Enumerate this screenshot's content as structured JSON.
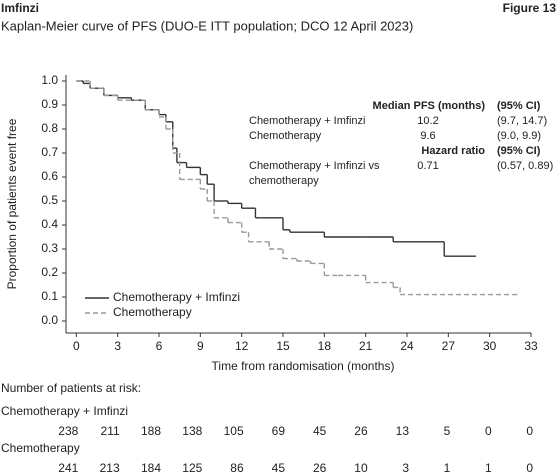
{
  "chart_data": {
    "type": "km",
    "header": "Imfinzi",
    "figure_label": "Figure 13",
    "title": "Kaplan-Meier curve of PFS (DUO-E ITT population; DCO 12 April 2023)",
    "x_label": "Time from randomisation (months)",
    "y_label": "Proportion of patients event free",
    "xlim": [
      -0.75,
      33
    ],
    "ylim": [
      -0.05,
      1.025
    ],
    "xticks": [
      0,
      3,
      6,
      9,
      12,
      15,
      18,
      21,
      24,
      27,
      30,
      33
    ],
    "yticks": [
      {
        "value": 0,
        "label": "0.0"
      },
      0.1,
      0.2,
      0.3,
      0.4,
      0.5,
      0.6,
      0.7,
      0.8,
      0.9,
      {
        "value": 1,
        "label": "1.0"
      }
    ],
    "legend": "lower left",
    "series": [
      {
        "name": "Chemotherapy + Imfinzi",
        "color": "#333333",
        "line_style": "solid",
        "x": [
          0,
          0.5,
          1,
          2,
          3,
          4,
          5,
          6,
          6.5,
          7,
          7.3,
          8,
          9,
          9.5,
          10,
          11,
          12,
          13,
          15,
          15.5,
          17,
          18,
          21,
          23,
          26,
          26.7,
          29
        ],
        "values": [
          1.0,
          0.99,
          0.97,
          0.94,
          0.93,
          0.92,
          0.88,
          0.86,
          0.83,
          0.72,
          0.66,
          0.64,
          0.61,
          0.57,
          0.5,
          0.49,
          0.47,
          0.43,
          0.38,
          0.37,
          0.37,
          0.35,
          0.35,
          0.33,
          0.33,
          0.27,
          0.27
        ]
      },
      {
        "name": "Chemotherapy",
        "color": "#999999",
        "line_style": "dashed",
        "x": [
          0,
          1,
          2,
          3,
          5,
          6,
          6.5,
          7,
          7.5,
          9,
          9.5,
          10,
          11,
          12,
          12.5,
          14,
          15,
          16,
          17,
          18,
          19,
          21,
          23,
          23.5,
          32
        ],
        "values": [
          1.0,
          0.97,
          0.94,
          0.92,
          0.88,
          0.85,
          0.8,
          0.7,
          0.59,
          0.55,
          0.5,
          0.43,
          0.41,
          0.37,
          0.33,
          0.3,
          0.26,
          0.25,
          0.24,
          0.19,
          0.19,
          0.16,
          0.14,
          0.11,
          0.11
        ]
      }
    ],
    "stats_table": {
      "median_header": [
        "Median PFS (months)",
        "(95% CI)"
      ],
      "median_rows": [
        [
          "Chemotherapy + Imfinzi",
          "10.2",
          "(9.7, 14.7)"
        ],
        [
          "Chemotherapy",
          "9.6",
          "(9.0, 9.9)"
        ]
      ],
      "hr_header": [
        "Hazard ratio",
        "(95% CI)"
      ],
      "hr_label": [
        "Chemotherapy + Imfinzi vs",
        "chemotherapy"
      ],
      "hr_value": "0.71",
      "hr_ci": "(0.57, 0.89)"
    },
    "risk_table": {
      "title": "Number of patients at risk:",
      "groups": [
        {
          "name": "Chemotherapy + Imfinzi",
          "values": [
            238,
            211,
            188,
            138,
            105,
            69,
            45,
            26,
            13,
            5,
            0,
            0
          ]
        },
        {
          "name": "Chemotherapy",
          "values": [
            241,
            213,
            184,
            125,
            86,
            45,
            26,
            10,
            3,
            1,
            1,
            0
          ]
        }
      ]
    }
  }
}
